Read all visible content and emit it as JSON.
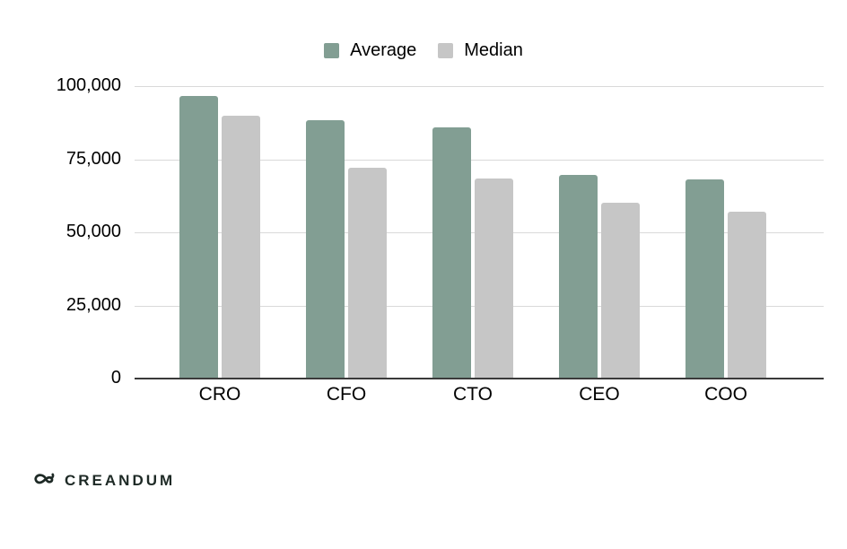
{
  "chart_data": {
    "type": "bar",
    "title": "",
    "categories": [
      "CRO",
      "CFO",
      "CTO",
      "CEO",
      "COO"
    ],
    "series": [
      {
        "name": "Average",
        "color": "#829E93",
        "values": [
          96500,
          88500,
          86000,
          69500,
          68000
        ]
      },
      {
        "name": "Median",
        "color": "#C6C6C6",
        "values": [
          90000,
          72000,
          68500,
          60000,
          57000
        ]
      }
    ],
    "xlabel": "",
    "ylabel": "",
    "ylim": [
      0,
      100000
    ],
    "yticks": [
      "100,000",
      "75,000",
      "50,000",
      "25,000",
      "0"
    ],
    "grid": true,
    "legend_position": "top",
    "gridline_color": "#D9D9D9",
    "axis_color": "#3A3A3A",
    "text_color": "#000000"
  },
  "footer": {
    "logo_text": "CREANDUM",
    "logo_color": "#1E2A26"
  }
}
